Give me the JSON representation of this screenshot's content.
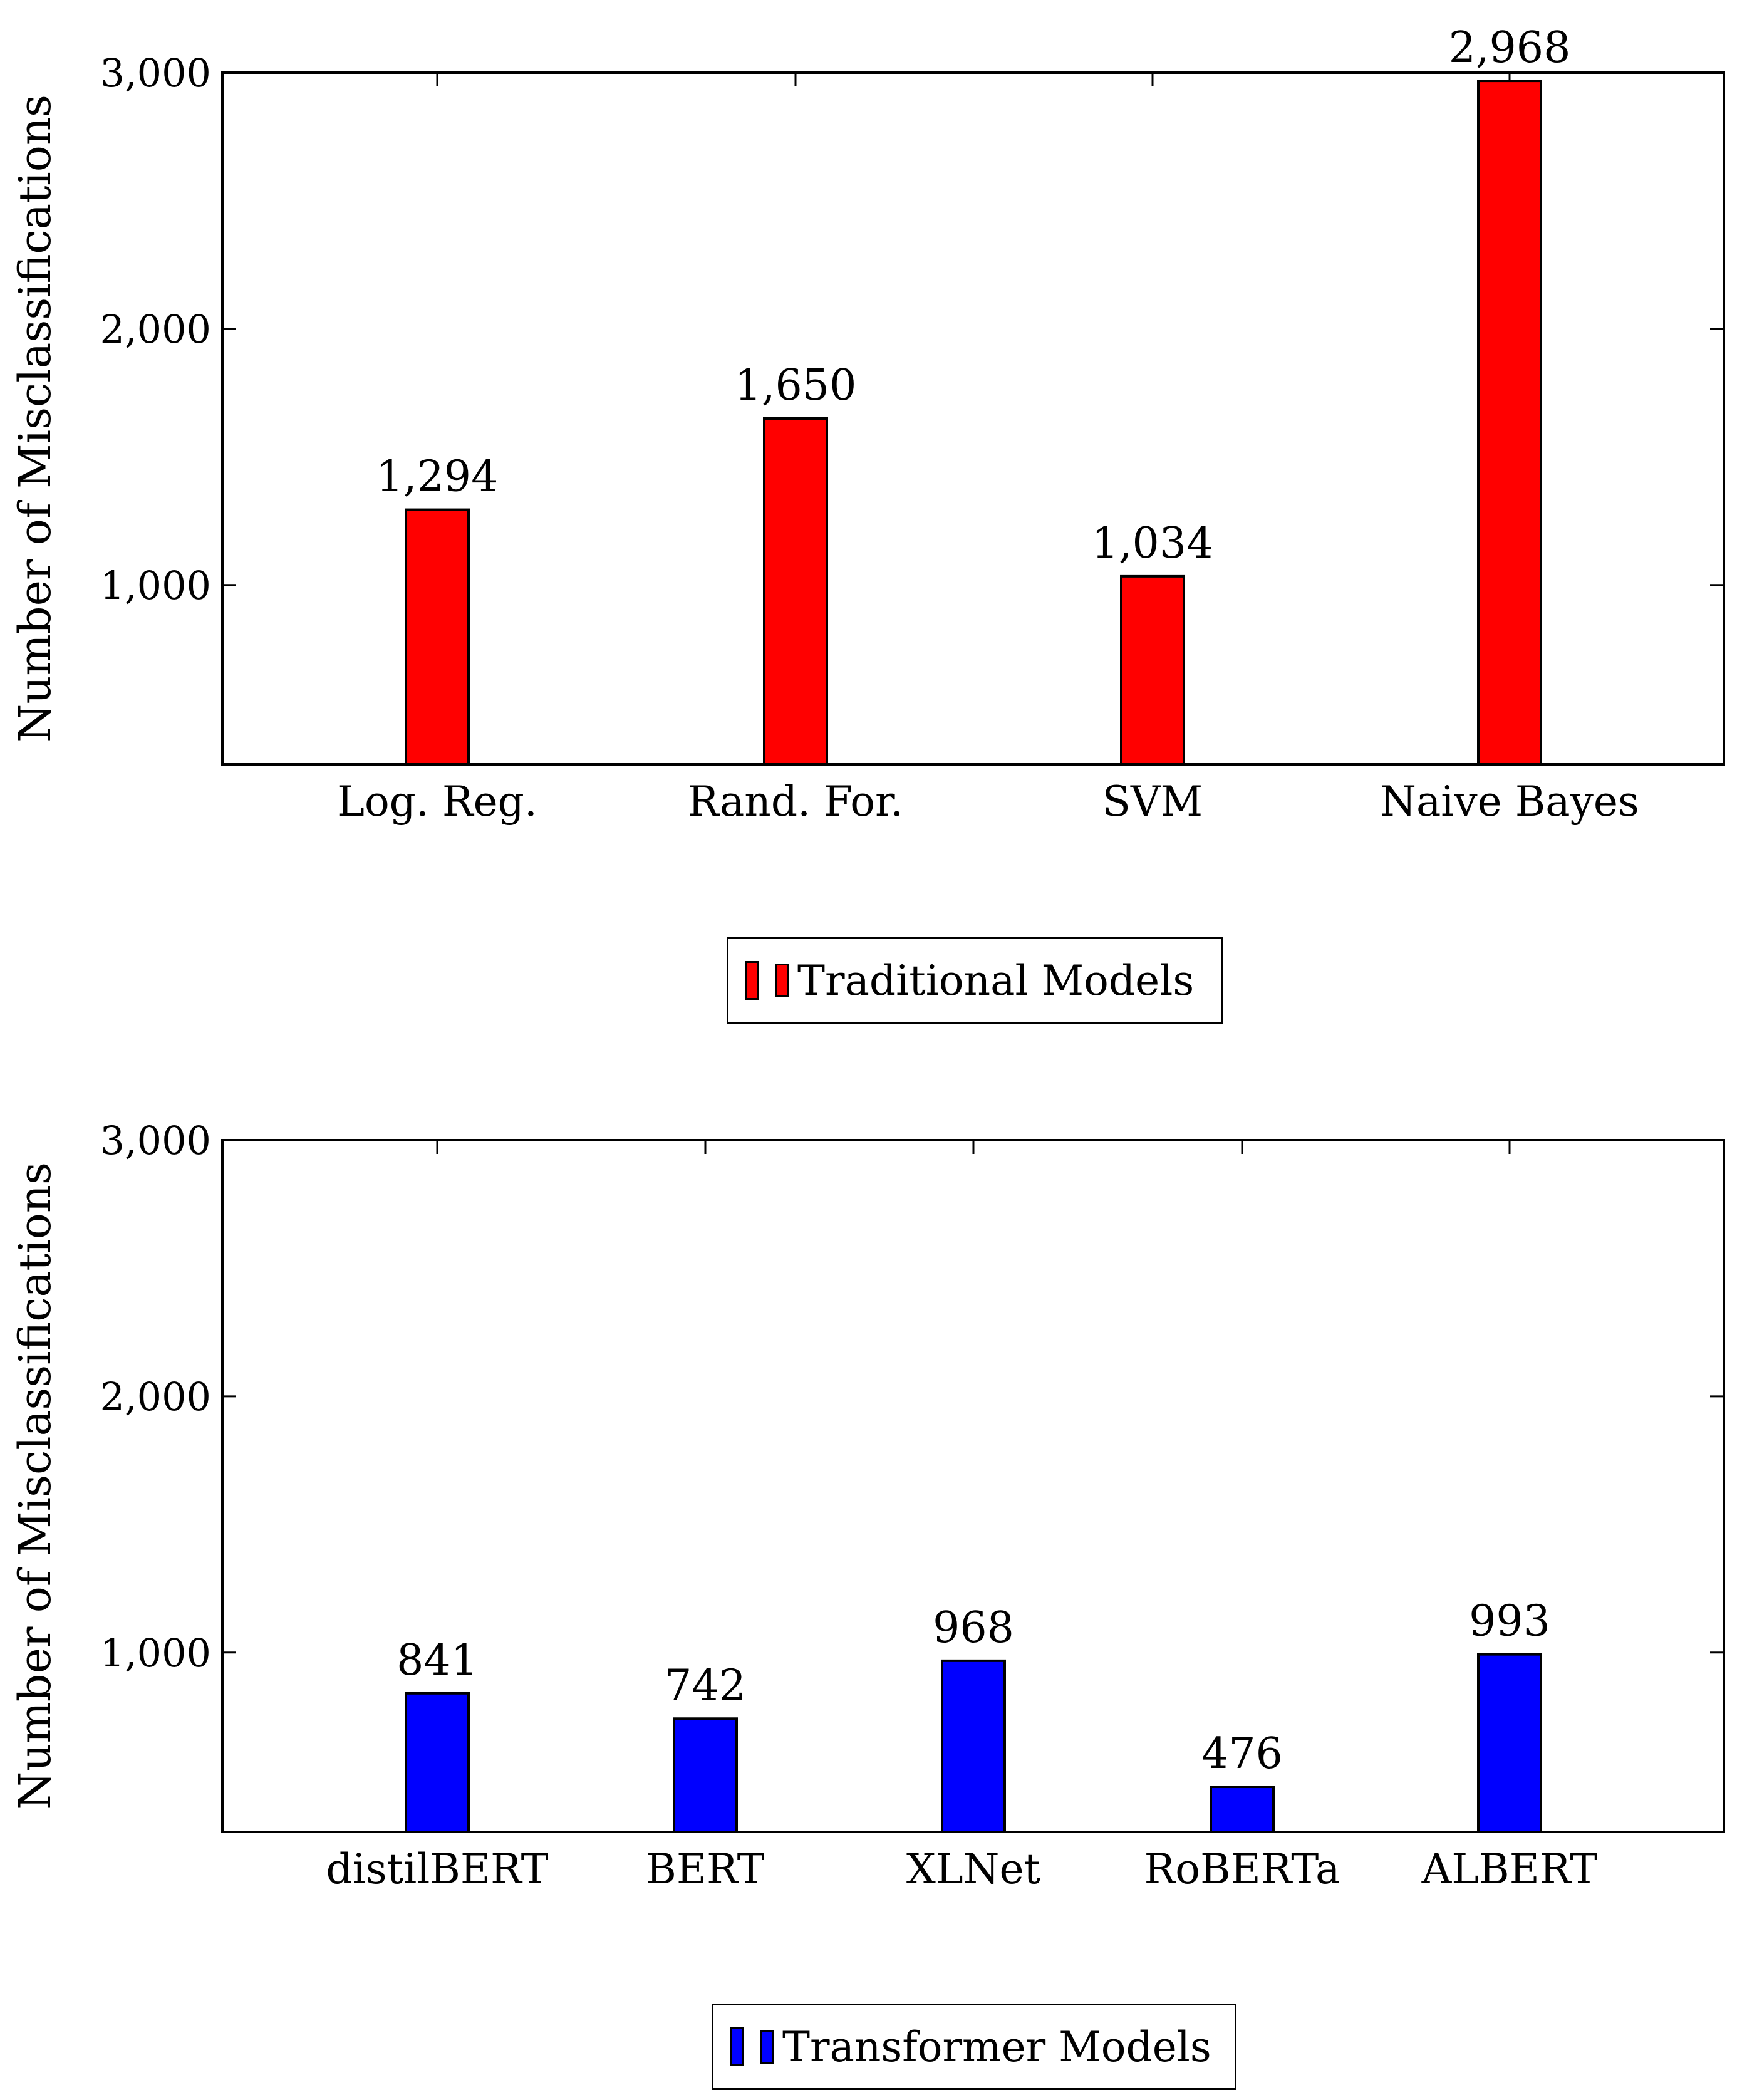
{
  "chart_data": [
    {
      "type": "bar",
      "ylabel": "Number of Misclassifications",
      "ylim": [
        300,
        3000
      ],
      "yticks": [
        1000,
        2000,
        3000
      ],
      "ytick_labels": [
        "1,000",
        "2,000",
        "3,000"
      ],
      "categories": [
        "Log. Reg.",
        "Rand. For.",
        "SVM",
        "Naive Bayes"
      ],
      "series": [
        {
          "name": "Traditional Models",
          "color": "#ff0000",
          "values": [
            1294,
            1650,
            1034,
            2968
          ],
          "value_labels": [
            "1,294",
            "1,650",
            "1,034",
            "2,968"
          ]
        }
      ],
      "legend": "bottom-center",
      "grid": false
    },
    {
      "type": "bar",
      "ylabel": "Number of Misclassifications",
      "ylim": [
        300,
        3000
      ],
      "yticks": [
        1000,
        2000,
        3000
      ],
      "ytick_labels": [
        "1,000",
        "2,000",
        "3,000"
      ],
      "categories": [
        "distilBERT",
        "BERT",
        "XLNet",
        "RoBERTa",
        "ALBERT"
      ],
      "series": [
        {
          "name": "Transformer Models",
          "color": "#0000ff",
          "values": [
            841,
            742,
            968,
            476,
            993
          ],
          "value_labels": [
            "841",
            "742",
            "968",
            "476",
            "993"
          ]
        }
      ],
      "legend": "bottom-center",
      "grid": false
    }
  ]
}
